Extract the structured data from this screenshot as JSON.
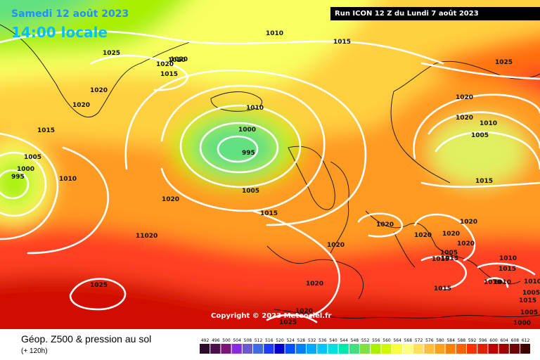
{
  "header": {
    "date": "Samedi 12 août 2023",
    "local_time": "14:00 locale",
    "run": "Run ICON 12 Z du Lundi 7 août 2023"
  },
  "copyright": "Copyright © 2023 Meteociel.fr",
  "legend": {
    "title": "Géop. Z500 & pression au sol",
    "subtitle": "(+ 120h)",
    "scale_values": [
      "492",
      "496",
      "500",
      "504",
      "508",
      "512",
      "516",
      "520",
      "524",
      "528",
      "532",
      "536",
      "540",
      "544",
      "548",
      "552",
      "556",
      "560",
      "564",
      "568",
      "572",
      "576",
      "580",
      "584",
      "588",
      "592",
      "596",
      "600",
      "604",
      "608",
      "612"
    ],
    "scale_colors": [
      "#2b0a2b",
      "#4b0d4b",
      "#7a167a",
      "#8a2be2",
      "#6a5acd",
      "#4169e1",
      "#1e3cff",
      "#0000cd",
      "#0050ff",
      "#0080ff",
      "#00a8ff",
      "#00c8ff",
      "#00e0e0",
      "#00e8b0",
      "#40e080",
      "#80e040",
      "#a8f000",
      "#d0f800",
      "#f8ff40",
      "#ffff80",
      "#ffe060",
      "#ffc040",
      "#ffa020",
      "#ff8000",
      "#ff6000",
      "#ff3000",
      "#e02000",
      "#c00000",
      "#a00000",
      "#700000",
      "#400000"
    ]
  },
  "map": {
    "isobar_labels": [
      {
        "text": "1010",
        "k": "a"
      },
      {
        "text": "1015",
        "k": "b"
      },
      {
        "text": "1025",
        "k": "c"
      },
      {
        "text": "1020",
        "k": "d"
      },
      {
        "text": "1020",
        "k": "e"
      },
      {
        "text": "1015",
        "k": "f"
      },
      {
        "text": "1020",
        "k": "g"
      },
      {
        "text": "1020",
        "k": "h"
      },
      {
        "text": "1015",
        "k": "i"
      },
      {
        "text": "1010",
        "k": "j"
      },
      {
        "text": "1000",
        "k": "k"
      },
      {
        "text": "995",
        "k": "l"
      },
      {
        "text": "1005",
        "k": "m"
      },
      {
        "text": "1005",
        "k": "n"
      },
      {
        "text": "1000",
        "k": "o"
      },
      {
        "text": "995",
        "k": "p"
      },
      {
        "text": "1010",
        "k": "q"
      },
      {
        "text": "1020",
        "k": "r"
      },
      {
        "text": "1015",
        "k": "s"
      },
      {
        "text": "11020",
        "k": "t"
      },
      {
        "text": "1025",
        "k": "u"
      },
      {
        "text": "1020",
        "k": "v"
      },
      {
        "text": "1020",
        "k": "w"
      },
      {
        "text": "1025",
        "k": "x"
      },
      {
        "text": "1020",
        "k": "y"
      },
      {
        "text": "1005",
        "k": "z"
      },
      {
        "text": "1010",
        "k": "aa"
      },
      {
        "text": "1015",
        "k": "ab"
      },
      {
        "text": "1020",
        "k": "ac"
      },
      {
        "text": "1020",
        "k": "ad"
      },
      {
        "text": "1020",
        "k": "ae"
      },
      {
        "text": "1020",
        "k": "af"
      },
      {
        "text": "1020",
        "k": "ag"
      },
      {
        "text": "1020",
        "k": "ah"
      },
      {
        "text": "1015",
        "k": "ai"
      },
      {
        "text": "1015",
        "k": "aj"
      },
      {
        "text": "1010",
        "k": "ak"
      },
      {
        "text": "1010",
        "k": "al"
      },
      {
        "text": "1015",
        "k": "am"
      },
      {
        "text": "1010",
        "k": "an"
      },
      {
        "text": "1005",
        "k": "ao"
      },
      {
        "text": "1010",
        "k": "ap"
      },
      {
        "text": "1005",
        "k": "aq"
      },
      {
        "text": "1015",
        "k": "ar"
      },
      {
        "text": "1020",
        "k": "as"
      },
      {
        "text": "1015",
        "k": "at"
      },
      {
        "text": "1025",
        "k": "au"
      },
      {
        "text": "1015",
        "k": "av"
      },
      {
        "text": "1020",
        "k": "aw"
      },
      {
        "text": "1005",
        "k": "ax"
      },
      {
        "text": "1000",
        "k": "ay"
      }
    ]
  }
}
